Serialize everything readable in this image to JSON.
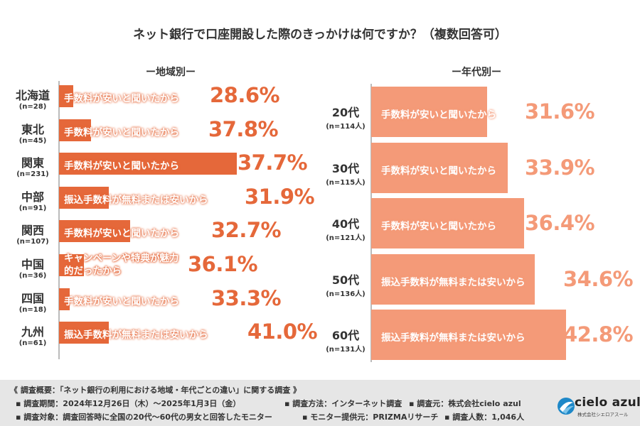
{
  "title": "ネット銀行で口座開設した際のきっかけは何ですか？（複数回答可）",
  "chart_data": [
    {
      "type": "bar",
      "orientation": "horizontal",
      "title": "ー地域別ー",
      "categories": [
        "北海道",
        "東北",
        "関東",
        "中部",
        "関西",
        "中国",
        "四国",
        "九州"
      ],
      "n_labels": [
        "(n=28)",
        "(n=45)",
        "(n=231)",
        "(n=91)",
        "(n=107)",
        "(n=36)",
        "(n=18)",
        "(n=61)"
      ],
      "top_reason": [
        "手数料が安いと聞いたから",
        "手数料が安いと聞いたから",
        "手数料が安いと聞いたから",
        "振込手数料が無料または安いから",
        "手数料が安いと聞いたから",
        "キャンペーンや特典が魅力的だったから",
        "手数料が安いと聞いたから",
        "振込手数料が無料または安いから"
      ],
      "values": [
        28.6,
        37.8,
        37.7,
        31.9,
        32.7,
        36.1,
        33.3,
        41.0
      ],
      "value_labels": [
        "28.6%",
        "37.8%",
        "37.7%",
        "31.9%",
        "32.7%",
        "36.1%",
        "33.3%",
        "41.0%"
      ],
      "color": "#E5683A"
    },
    {
      "type": "bar",
      "orientation": "horizontal",
      "title": "ー年代別ー",
      "categories": [
        "20代",
        "30代",
        "40代",
        "50代",
        "60代"
      ],
      "n_labels": [
        "(n=114人)",
        "(n=115人)",
        "(n=121人)",
        "(n=136人)",
        "(n=131人)"
      ],
      "top_reason": [
        "手数料が安いと聞いたから",
        "手数料が安いと聞いたから",
        "手数料が安いと聞いたから",
        "振込手数料が無料または安いから",
        "振込手数料が無料または安いから"
      ],
      "values": [
        31.6,
        33.9,
        36.4,
        34.6,
        42.8
      ],
      "value_labels": [
        "31.6%",
        "33.9%",
        "36.4%",
        "34.6%",
        "42.8%"
      ],
      "color": "#F49A78"
    }
  ],
  "footer": {
    "line1": "《 調査概要：「ネット銀行の利用における地域・年代ごとの違い」に関する調査 》",
    "period": "▪ 調査期間：2024年12月26日（木）〜2025年1月3日（金）",
    "method": "▪ 調査方法：インターネット調査",
    "source": "▪ 調査元：株式会社cielo azul",
    "target": "▪ 調査対象：調査回答時に全国の20代〜60代の男女と回答したモニター",
    "provider": "▪ モニター提供元：PRIZMAリサーチ",
    "count": "▪ 調査人数：1,046人"
  },
  "logo": {
    "name": "cielo azul",
    "sub": "株式会社シエロアスール",
    "color": "#1E88C8"
  }
}
